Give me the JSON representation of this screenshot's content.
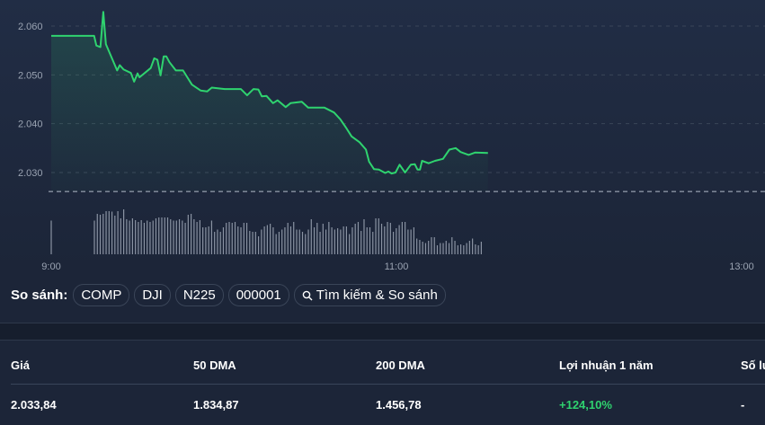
{
  "chart_data": {
    "type": "area",
    "x_unit": "minutes after 9:00",
    "xlim_labels": [
      "9:00",
      "11:00",
      "13:00"
    ],
    "yticks": [
      "2.030",
      "2.040",
      "2.050",
      "2.060"
    ],
    "ylim": [
      2.0255,
      2.0635
    ],
    "reference_line": 2.0261,
    "line_color": "#2fd36f",
    "grid": true,
    "price_series": [
      [
        0,
        2.058
      ],
      [
        14.9,
        2.058
      ],
      [
        15.7,
        2.056
      ],
      [
        17.1,
        2.0557
      ],
      [
        18.1,
        2.0629
      ],
      [
        19,
        2.0563
      ],
      [
        22.9,
        2.0509
      ],
      [
        23.8,
        2.052
      ],
      [
        25.2,
        2.0511
      ],
      [
        27.7,
        2.0504
      ],
      [
        28.8,
        2.0486
      ],
      [
        30,
        2.0503
      ],
      [
        30.7,
        2.0495
      ],
      [
        34.6,
        2.0514
      ],
      [
        35.8,
        2.0534
      ],
      [
        36.9,
        2.0531
      ],
      [
        38,
        2.0499
      ],
      [
        39.1,
        2.0538
      ],
      [
        40,
        2.0538
      ],
      [
        41.1,
        2.0526
      ],
      [
        43.3,
        2.0509
      ],
      [
        45.8,
        2.0509
      ],
      [
        48.9,
        2.048
      ],
      [
        51.9,
        2.0468
      ],
      [
        54.2,
        2.0466
      ],
      [
        55.8,
        2.0474
      ],
      [
        60.3,
        2.0471
      ],
      [
        65.9,
        2.0471
      ],
      [
        68.1,
        2.0458
      ],
      [
        70.3,
        2.0471
      ],
      [
        72,
        2.047
      ],
      [
        73.2,
        2.0456
      ],
      [
        74.8,
        2.0457
      ],
      [
        77.1,
        2.0442
      ],
      [
        78.7,
        2.0448
      ],
      [
        81.5,
        2.0434
      ],
      [
        83.2,
        2.0442
      ],
      [
        87.1,
        2.0445
      ],
      [
        89.3,
        2.0433
      ],
      [
        94.9,
        2.0433
      ],
      [
        98.3,
        2.0423
      ],
      [
        100.5,
        2.0409
      ],
      [
        102.7,
        2.039
      ],
      [
        104.4,
        2.0374
      ],
      [
        107.2,
        2.0362
      ],
      [
        109.4,
        2.0347
      ],
      [
        110.5,
        2.0322
      ],
      [
        112.2,
        2.0307
      ],
      [
        113.9,
        2.0306
      ],
      [
        116.1,
        2.0299
      ],
      [
        117.2,
        2.0302
      ],
      [
        118.3,
        2.0298
      ],
      [
        119.7,
        2.03
      ],
      [
        121.1,
        2.0316
      ],
      [
        123,
        2.03
      ],
      [
        125,
        2.0316
      ],
      [
        126.4,
        2.0317
      ],
      [
        127.3,
        2.0306
      ],
      [
        128.2,
        2.0306
      ],
      [
        128.9,
        2.0324
      ],
      [
        131.2,
        2.0319
      ],
      [
        133.4,
        2.0324
      ],
      [
        136.2,
        2.0328
      ],
      [
        138.4,
        2.0347
      ],
      [
        140.6,
        2.035
      ],
      [
        142.3,
        2.0342
      ],
      [
        145.1,
        2.0336
      ],
      [
        147.4,
        2.0341
      ],
      [
        151.8,
        2.034
      ]
    ],
    "volume_first": 75,
    "volume": [
      75,
      90,
      88,
      90,
      96,
      96,
      95,
      86,
      96,
      80,
      100,
      78,
      75,
      80,
      76,
      72,
      76,
      70,
      75,
      72,
      75,
      80,
      82,
      82,
      82,
      82,
      78,
      75,
      75,
      78,
      75,
      70,
      88,
      90,
      78,
      72,
      76,
      60,
      60,
      62,
      75,
      50,
      55,
      50,
      60,
      70,
      72,
      70,
      72,
      62,
      60,
      70,
      70,
      52,
      50,
      50,
      40,
      55,
      62,
      65,
      68,
      60,
      45,
      50,
      55,
      60,
      70,
      62,
      72,
      55,
      55,
      50,
      45,
      55,
      78,
      60,
      70,
      50,
      68,
      55,
      72,
      60,
      55,
      58,
      55,
      62,
      62,
      45,
      60,
      68,
      72,
      52,
      78,
      60,
      60,
      50,
      80,
      80,
      68,
      62,
      72,
      70,
      50,
      58,
      65,
      72,
      72,
      55,
      55,
      60,
      35,
      32,
      28,
      25,
      30,
      38,
      38,
      20,
      25,
      25,
      30,
      25,
      38,
      30,
      20,
      22,
      20,
      25,
      30,
      35,
      22,
      20,
      28
    ],
    "volume_color": "#8a93a3"
  },
  "compare": {
    "label": "So sánh:",
    "chips": [
      "COMP",
      "DJI",
      "N225",
      "000001"
    ],
    "search_label": "Tìm kiếm & So sánh"
  },
  "stats": {
    "headers": [
      "Giá",
      "50 DMA",
      "200 DMA",
      "Lợi nhuận 1 năm",
      "Số lư"
    ],
    "values": [
      "2.033,84",
      "1.834,87",
      "1.456,78",
      "+124,10%",
      "-"
    ],
    "positive_color": "#2fd36f"
  }
}
